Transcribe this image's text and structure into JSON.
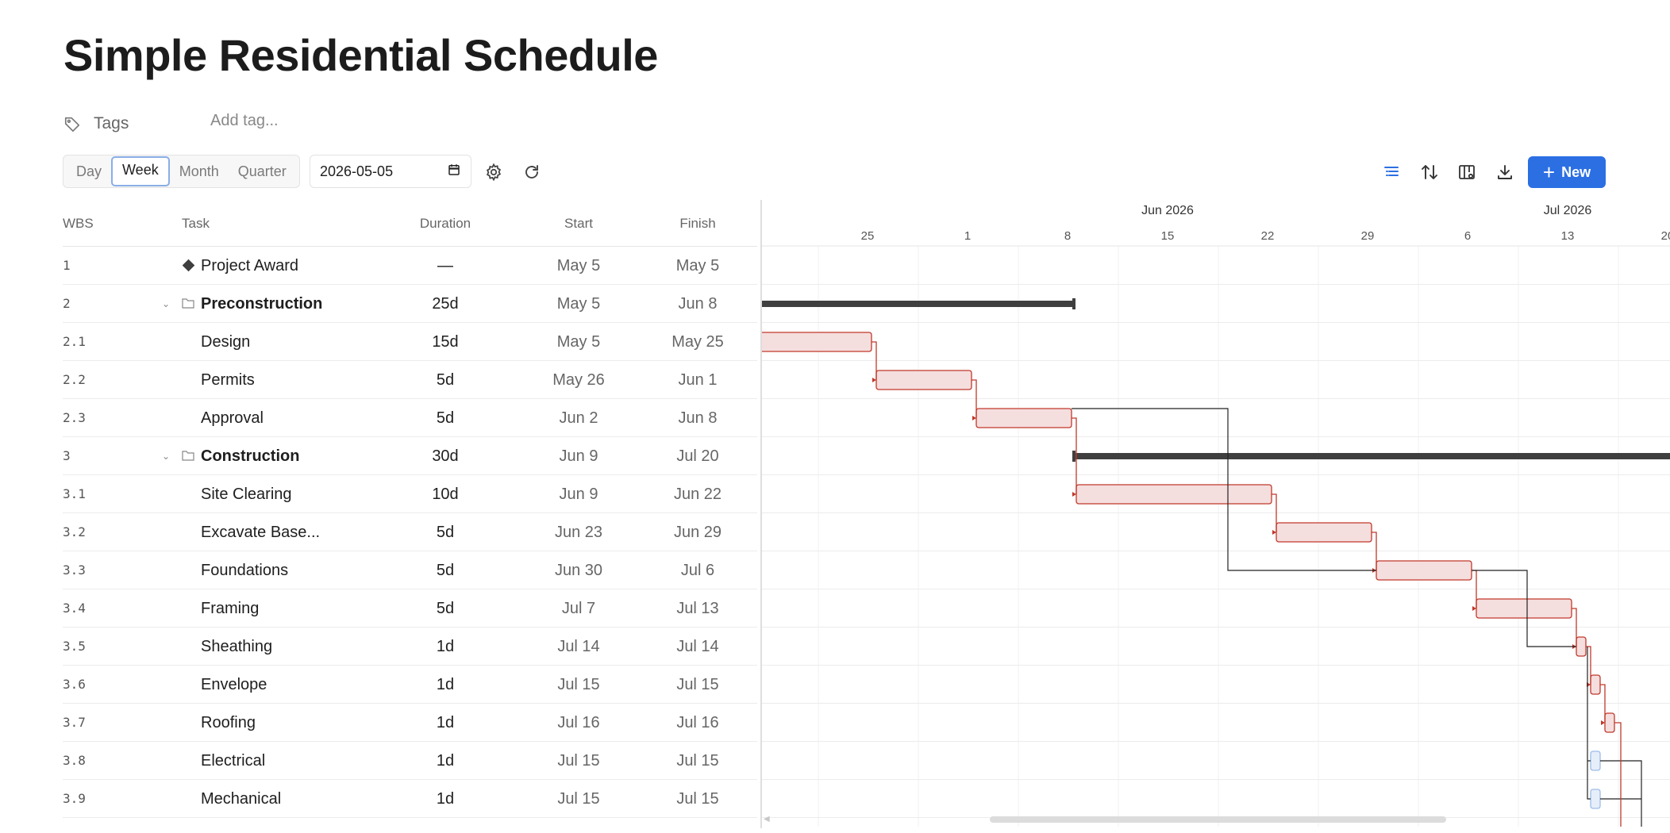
{
  "page": {
    "title": "Simple Residential Schedule"
  },
  "tags": {
    "label": "Tags",
    "add_placeholder": "Add tag..."
  },
  "toolbar": {
    "views": [
      "Day",
      "Week",
      "Month",
      "Quarter"
    ],
    "active_view": "Week",
    "date_value": "2026-05-05",
    "new_label": "New"
  },
  "columns": {
    "wbs": "WBS",
    "task": "Task",
    "duration": "Duration",
    "start": "Start",
    "finish": "Finish"
  },
  "tasks": [
    {
      "wbs": "1",
      "name": "Project Award",
      "duration": "—",
      "start": "May 5",
      "finish": "May 5",
      "type": "milestone",
      "level": 0
    },
    {
      "wbs": "2",
      "name": "Preconstruction",
      "duration": "25d",
      "start": "May 5",
      "finish": "Jun 8",
      "type": "summary",
      "level": 0
    },
    {
      "wbs": "2.1",
      "name": "Design",
      "duration": "15d",
      "start": "May 5",
      "finish": "May 25",
      "type": "task",
      "level": 1
    },
    {
      "wbs": "2.2",
      "name": "Permits",
      "duration": "5d",
      "start": "May 26",
      "finish": "Jun 1",
      "type": "task",
      "level": 1
    },
    {
      "wbs": "2.3",
      "name": "Approval",
      "duration": "5d",
      "start": "Jun 2",
      "finish": "Jun 8",
      "type": "task",
      "level": 1
    },
    {
      "wbs": "3",
      "name": "Construction",
      "duration": "30d",
      "start": "Jun 9",
      "finish": "Jul 20",
      "type": "summary",
      "level": 0
    },
    {
      "wbs": "3.1",
      "name": "Site Clearing",
      "duration": "10d",
      "start": "Jun 9",
      "finish": "Jun 22",
      "type": "task",
      "level": 1
    },
    {
      "wbs": "3.2",
      "name": "Excavate Base...",
      "duration": "5d",
      "start": "Jun 23",
      "finish": "Jun 29",
      "type": "task",
      "level": 1
    },
    {
      "wbs": "3.3",
      "name": "Foundations",
      "duration": "5d",
      "start": "Jun 30",
      "finish": "Jul 6",
      "type": "task",
      "level": 1
    },
    {
      "wbs": "3.4",
      "name": "Framing",
      "duration": "5d",
      "start": "Jul 7",
      "finish": "Jul 13",
      "type": "task",
      "level": 1
    },
    {
      "wbs": "3.5",
      "name": "Sheathing",
      "duration": "1d",
      "start": "Jul 14",
      "finish": "Jul 14",
      "type": "task",
      "level": 1
    },
    {
      "wbs": "3.6",
      "name": "Envelope",
      "duration": "1d",
      "start": "Jul 15",
      "finish": "Jul 15",
      "type": "task",
      "level": 1
    },
    {
      "wbs": "3.7",
      "name": "Roofing",
      "duration": "1d",
      "start": "Jul 16",
      "finish": "Jul 16",
      "type": "task",
      "level": 1
    },
    {
      "wbs": "3.8",
      "name": "Electrical",
      "duration": "1d",
      "start": "Jul 15",
      "finish": "Jul 15",
      "type": "task",
      "level": 1
    },
    {
      "wbs": "3.9",
      "name": "Mechanical",
      "duration": "1d",
      "start": "Jul 15",
      "finish": "Jul 15",
      "type": "task",
      "level": 1
    }
  ],
  "gantt": {
    "months": [
      "Jun 2026",
      "Jul 2026"
    ],
    "day_ticks": [
      "25",
      "1",
      "8",
      "15",
      "22",
      "29",
      "6",
      "13",
      "20"
    ]
  },
  "colors": {
    "accent": "#2b6fe3",
    "critical": "#c0392b",
    "bar_fill": "#f5dede",
    "summary": "#3f3f3f",
    "non_critical_outline": "#9dbde8"
  }
}
